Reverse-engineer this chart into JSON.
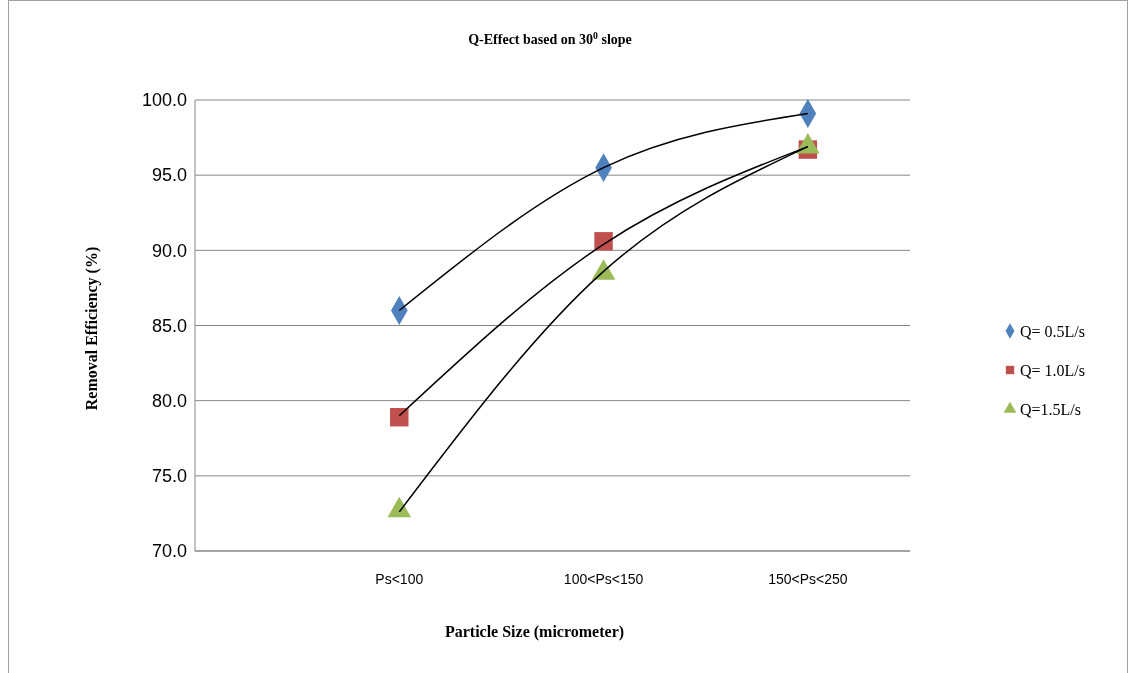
{
  "chart_data": {
    "type": "scatter",
    "title": "Q-Effect based on 30$^{0}$ slope",
    "xlabel": "Particle Size (micrometer)",
    "ylabel": "Removal Efficiency (%)",
    "categories": [
      "Ps<100",
      "100<Ps<150",
      "150<Ps<250"
    ],
    "ylim": [
      70,
      100
    ],
    "yticks": [
      {
        "value": 70,
        "label": "70.0"
      },
      {
        "value": 75,
        "label": "75.0"
      },
      {
        "value": 80,
        "label": "80.0"
      },
      {
        "value": 85,
        "label": "85.0"
      },
      {
        "value": 90,
        "label": "90.0"
      },
      {
        "value": 95,
        "label": "95.0"
      },
      {
        "value": 100,
        "label": "100.0"
      }
    ],
    "grid": "y",
    "legend": "right",
    "series": [
      {
        "name": "Q= 0.5L/s",
        "color": "#4f81bd",
        "marker": "diamond",
        "values": [
          86.0,
          95.5,
          99.1
        ]
      },
      {
        "name": "Q= 1.0L/s",
        "color": "#c0504d",
        "marker": "square",
        "values": [
          78.9,
          90.6,
          96.7
        ]
      },
      {
        "name": "Q=1.5L/s",
        "color": "#9bbb59",
        "marker": "triangle",
        "values": [
          72.7,
          88.5,
          96.9
        ]
      },
      {
        "type": "line",
        "color": "#000000",
        "values": [
          86.0,
          95.5,
          99.1
        ]
      },
      {
        "type": "line",
        "color": "#000000",
        "values": [
          79.0,
          90.4,
          96.9
        ]
      },
      {
        "type": "line",
        "color": "#000000",
        "values": [
          72.6,
          88.6,
          96.9
        ]
      }
    ]
  }
}
